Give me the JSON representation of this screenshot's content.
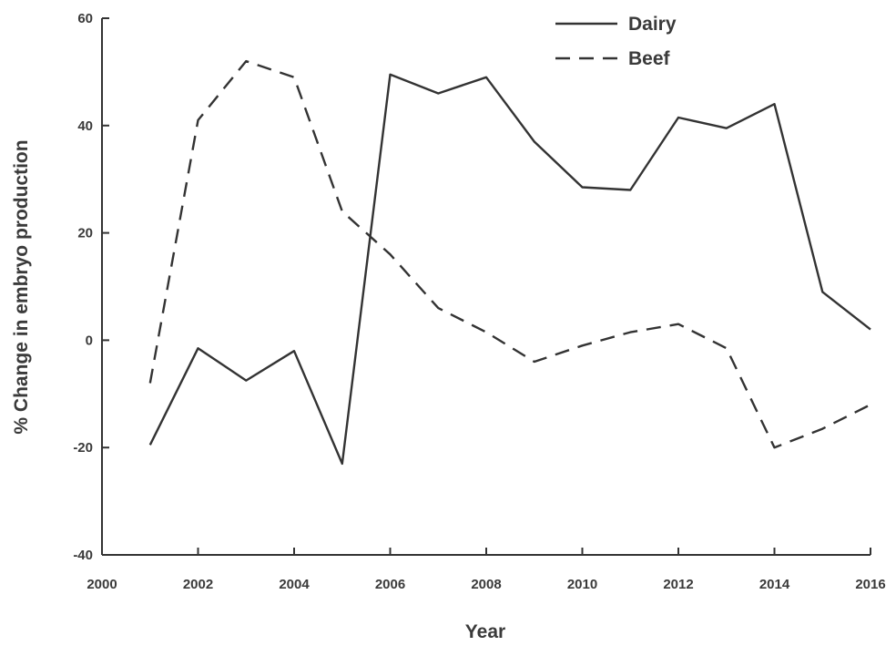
{
  "chart_data": {
    "type": "line",
    "title": "",
    "xlabel": "Year",
    "ylabel": "% Change in embryo production",
    "xlim": [
      2000,
      2016
    ],
    "ylim": [
      -40,
      60
    ],
    "xticks": [
      2000,
      2002,
      2004,
      2006,
      2008,
      2010,
      2012,
      2014,
      2016
    ],
    "yticks": [
      -40,
      -20,
      0,
      20,
      40,
      60
    ],
    "grid": false,
    "legend_position": "top-right",
    "series": [
      {
        "name": "Dairy",
        "style": "solid",
        "color": "#333333",
        "x": [
          2001,
          2002,
          2003,
          2004,
          2005,
          2006,
          2007,
          2008,
          2009,
          2010,
          2011,
          2012,
          2013,
          2014,
          2015,
          2016
        ],
        "y": [
          -19.5,
          -1.5,
          -7.5,
          -2,
          -23,
          49.5,
          46,
          49,
          37,
          28.5,
          28,
          41.5,
          39.5,
          44,
          9,
          2
        ]
      },
      {
        "name": "Beef",
        "style": "dashed",
        "color": "#333333",
        "x": [
          2001,
          2002,
          2003,
          2004,
          2005,
          2006,
          2007,
          2008,
          2009,
          2010,
          2011,
          2012,
          2013,
          2014,
          2015,
          2016
        ],
        "y": [
          -8,
          41,
          52,
          49,
          24,
          16,
          6,
          1.5,
          -4,
          -1,
          1.5,
          3,
          -1.5,
          -20,
          -16.5,
          -12
        ]
      }
    ]
  }
}
